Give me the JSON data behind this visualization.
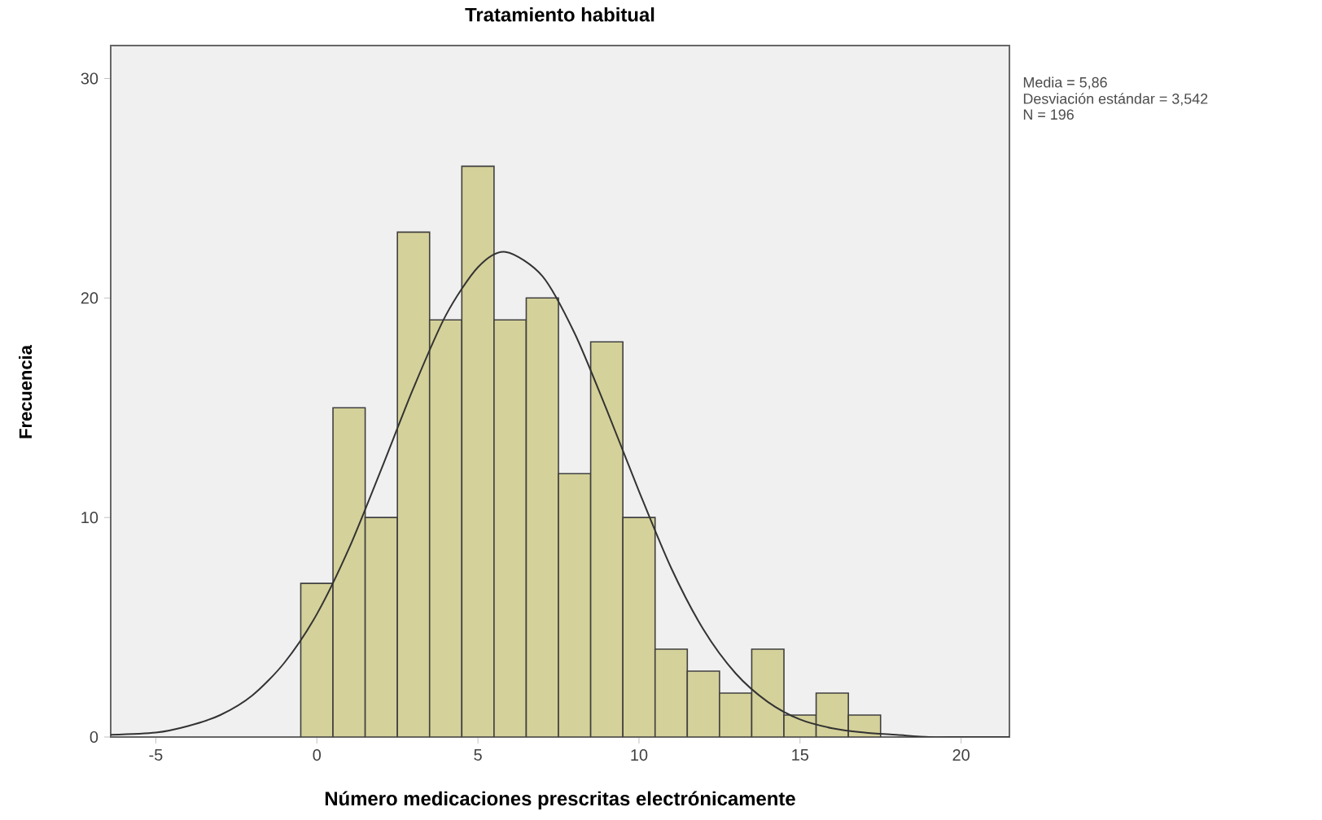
{
  "chart_data": {
    "type": "histogram",
    "title": "Tratamiento habitual",
    "xlabel": "Número medicaciones prescritas electrónicamente",
    "ylabel": "Frecuencia",
    "bins": [
      -0.5,
      0.5,
      1.5,
      2.5,
      3.5,
      4.5,
      5.5,
      6.5,
      7.5,
      8.5,
      9.5,
      10.5,
      11.5,
      12.5,
      13.5,
      14.5,
      15.5,
      16.5,
      17.5
    ],
    "values": [
      7,
      15,
      10,
      23,
      19,
      26,
      19,
      20,
      12,
      18,
      10,
      4,
      3,
      2,
      4,
      1,
      2,
      1
    ],
    "color": "#d4d19a",
    "series": [
      {
        "type": "line",
        "color": "#333333",
        "x": [
          -6.4,
          -5,
          -4,
          -3,
          -2,
          -1,
          0,
          1,
          2,
          3,
          4,
          5,
          5.86,
          7,
          8,
          9,
          10,
          11,
          12,
          13,
          14,
          15,
          16,
          17,
          18,
          19,
          20,
          21.5
        ],
        "values": [
          0.1,
          0.2,
          0.5,
          1.0,
          1.9,
          3.4,
          5.6,
          8.6,
          12.2,
          15.9,
          19.2,
          21.4,
          22.1,
          21.0,
          18.4,
          14.9,
          11.2,
          7.7,
          4.9,
          2.9,
          1.6,
          0.8,
          0.4,
          0.2,
          0.1,
          0.0,
          0.0,
          0.0
        ]
      }
    ],
    "xlim": [
      -6.4,
      21.5
    ],
    "ylim": [
      0,
      31.5
    ],
    "xticks": [
      -5,
      0,
      5,
      10,
      15,
      20
    ],
    "yticks": [
      0,
      10,
      20,
      30
    ],
    "grid": false,
    "annotations": [
      "Media = 5,86",
      "Desviación estándar = 3,542",
      "N = 196"
    ]
  }
}
